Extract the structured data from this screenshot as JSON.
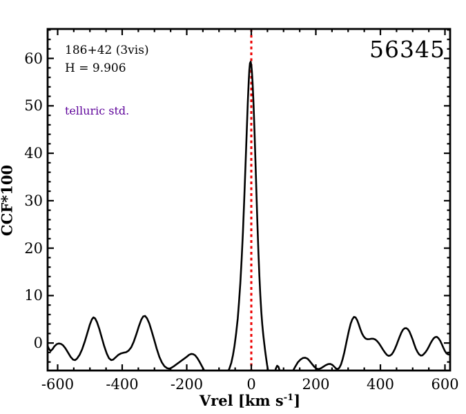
{
  "header": {
    "epoch_label": "56345"
  },
  "annotations": {
    "target_line": "186+42 (3vis)",
    "magnitude_line": "H = 9.906",
    "classification_note": "telluric std."
  },
  "colors": {
    "curve": "#000000",
    "frame": "#000000",
    "ref_line": "#ee0000",
    "note_text": "#5c0099"
  },
  "chart_data": {
    "type": "line",
    "title": "56345",
    "xlabel": "Vrel [km s-1]",
    "xlabel_parts": {
      "main": "Vrel [km s",
      "sup": "-1",
      "end": "]"
    },
    "ylabel": "CCF*100",
    "xlim": [
      -631,
      616
    ],
    "ylim": [
      -5.8,
      66.2
    ],
    "grid": false,
    "legend": "none",
    "x_major_ticks": [
      -600,
      -400,
      -200,
      0,
      200,
      400,
      600
    ],
    "x_tick_labels": [
      "-600",
      "-400",
      "-200",
      "0",
      "200",
      "400",
      "600"
    ],
    "x_minor_step": 50,
    "y_major_ticks": [
      0,
      10,
      20,
      30,
      40,
      50,
      60
    ],
    "y_tick_labels": [
      "0",
      "10",
      "20",
      "30",
      "40",
      "50",
      "60"
    ],
    "y_minor_step": 2,
    "ref_line": {
      "x": 0,
      "style": "dotted",
      "color": "#ee0000"
    },
    "series": [
      {
        "name": "CCF",
        "color": "#000000",
        "points": [
          [
            -633,
            -0.3
          ],
          [
            -628,
            -1.1
          ],
          [
            -622,
            -1.7
          ],
          [
            -616,
            -1.3
          ],
          [
            -610,
            -0.7
          ],
          [
            -603,
            -0.25
          ],
          [
            -596,
            -0.1
          ],
          [
            -589,
            -0.2
          ],
          [
            -583,
            -0.5
          ],
          [
            -576,
            -1.1
          ],
          [
            -568,
            -2.0
          ],
          [
            -560,
            -2.9
          ],
          [
            -552,
            -3.5
          ],
          [
            -546,
            -3.6
          ],
          [
            -540,
            -3.3
          ],
          [
            -532,
            -2.5
          ],
          [
            -524,
            -1.3
          ],
          [
            -516,
            0.3
          ],
          [
            -508,
            2.1
          ],
          [
            -500,
            3.9
          ],
          [
            -494,
            5.0
          ],
          [
            -489,
            5.4
          ],
          [
            -484,
            5.2
          ],
          [
            -478,
            4.4
          ],
          [
            -471,
            3.0
          ],
          [
            -464,
            1.3
          ],
          [
            -456,
            -0.6
          ],
          [
            -448,
            -2.2
          ],
          [
            -441,
            -3.2
          ],
          [
            -434,
            -3.6
          ],
          [
            -428,
            -3.5
          ],
          [
            -420,
            -3.0
          ],
          [
            -412,
            -2.5
          ],
          [
            -404,
            -2.2
          ],
          [
            -396,
            -2.05
          ],
          [
            -388,
            -1.95
          ],
          [
            -380,
            -1.6
          ],
          [
            -372,
            -0.9
          ],
          [
            -364,
            0.3
          ],
          [
            -356,
            1.9
          ],
          [
            -348,
            3.6
          ],
          [
            -341,
            4.9
          ],
          [
            -335,
            5.6
          ],
          [
            -329,
            5.7
          ],
          [
            -323,
            5.2
          ],
          [
            -316,
            4.1
          ],
          [
            -309,
            2.6
          ],
          [
            -301,
            0.7
          ],
          [
            -293,
            -1.2
          ],
          [
            -285,
            -2.9
          ],
          [
            -277,
            -4.1
          ],
          [
            -269,
            -4.9
          ],
          [
            -261,
            -5.3
          ],
          [
            -254,
            -5.4
          ],
          [
            -247,
            -5.2
          ],
          [
            -240,
            -4.9
          ],
          [
            -232,
            -4.5
          ],
          [
            -224,
            -4.1
          ],
          [
            -216,
            -3.7
          ],
          [
            -208,
            -3.3
          ],
          [
            -200,
            -2.9
          ],
          [
            -193,
            -2.5
          ],
          [
            -186,
            -2.3
          ],
          [
            -180,
            -2.35
          ],
          [
            -174,
            -2.6
          ],
          [
            -167,
            -3.2
          ],
          [
            -160,
            -4.0
          ],
          [
            -152,
            -5.0
          ],
          [
            -144,
            -6.0
          ],
          [
            -136,
            -6.8
          ],
          [
            -128,
            -7.4
          ],
          [
            -100,
            -7.8
          ],
          [
            -88,
            -7.4
          ],
          [
            -80,
            -6.8
          ],
          [
            -74,
            -6.2
          ],
          [
            -68,
            -5.4
          ],
          [
            -62,
            -4.2
          ],
          [
            -57,
            -2.6
          ],
          [
            -52,
            -0.6
          ],
          [
            -47,
            2.0
          ],
          [
            -42,
            5.2
          ],
          [
            -38,
            8.6
          ],
          [
            -34,
            12.6
          ],
          [
            -30,
            17.6
          ],
          [
            -26,
            23.4
          ],
          [
            -22,
            30.0
          ],
          [
            -18,
            37.4
          ],
          [
            -14,
            45.0
          ],
          [
            -11,
            50.6
          ],
          [
            -8,
            55.2
          ],
          [
            -6,
            57.6
          ],
          [
            -4,
            59.0
          ],
          [
            -2,
            59.3
          ],
          [
            0,
            58.6
          ],
          [
            2,
            57.2
          ],
          [
            4,
            54.8
          ],
          [
            7,
            50.2
          ],
          [
            10,
            44.4
          ],
          [
            13,
            38.0
          ],
          [
            16,
            31.4
          ],
          [
            19,
            25.0
          ],
          [
            22,
            19.2
          ],
          [
            25,
            14.2
          ],
          [
            28,
            10.0
          ],
          [
            31,
            6.6
          ],
          [
            34,
            3.9
          ],
          [
            37,
            1.8
          ],
          [
            40,
            0.0
          ],
          [
            43,
            -1.7
          ],
          [
            46,
            -3.2
          ],
          [
            49,
            -4.6
          ],
          [
            52,
            -5.8
          ],
          [
            56,
            -7.0
          ],
          [
            62,
            -8.0
          ],
          [
            68,
            -7.6
          ],
          [
            72,
            -6.4
          ],
          [
            76,
            -5.4
          ],
          [
            80,
            -4.8
          ],
          [
            84,
            -5.0
          ],
          [
            88,
            -5.8
          ],
          [
            92,
            -6.8
          ],
          [
            100,
            -8.0
          ],
          [
            112,
            -7.8
          ],
          [
            120,
            -6.9
          ],
          [
            128,
            -6.0
          ],
          [
            136,
            -5.0
          ],
          [
            144,
            -4.1
          ],
          [
            152,
            -3.5
          ],
          [
            160,
            -3.15
          ],
          [
            167,
            -3.1
          ],
          [
            174,
            -3.3
          ],
          [
            181,
            -3.8
          ],
          [
            188,
            -4.4
          ],
          [
            195,
            -5.0
          ],
          [
            202,
            -5.4
          ],
          [
            209,
            -5.5
          ],
          [
            216,
            -5.3
          ],
          [
            223,
            -5.0
          ],
          [
            230,
            -4.7
          ],
          [
            238,
            -4.45
          ],
          [
            245,
            -4.4
          ],
          [
            251,
            -4.6
          ],
          [
            257,
            -5.0
          ],
          [
            263,
            -5.4
          ],
          [
            268,
            -5.5
          ],
          [
            273,
            -5.2
          ],
          [
            278,
            -4.5
          ],
          [
            283,
            -3.4
          ],
          [
            288,
            -2.0
          ],
          [
            293,
            -0.4
          ],
          [
            298,
            1.2
          ],
          [
            303,
            2.8
          ],
          [
            308,
            4.1
          ],
          [
            313,
            5.0
          ],
          [
            318,
            5.5
          ],
          [
            323,
            5.4
          ],
          [
            328,
            4.8
          ],
          [
            333,
            3.9
          ],
          [
            338,
            2.9
          ],
          [
            343,
            2.0
          ],
          [
            348,
            1.4
          ],
          [
            354,
            0.95
          ],
          [
            360,
            0.8
          ],
          [
            366,
            0.82
          ],
          [
            372,
            0.9
          ],
          [
            378,
            0.9
          ],
          [
            384,
            0.75
          ],
          [
            390,
            0.4
          ],
          [
            396,
            -0.1
          ],
          [
            402,
            -0.75
          ],
          [
            408,
            -1.4
          ],
          [
            414,
            -2.0
          ],
          [
            420,
            -2.5
          ],
          [
            425,
            -2.7
          ],
          [
            430,
            -2.65
          ],
          [
            435,
            -2.4
          ],
          [
            440,
            -1.9
          ],
          [
            445,
            -1.2
          ],
          [
            450,
            -0.4
          ],
          [
            455,
            0.5
          ],
          [
            460,
            1.4
          ],
          [
            465,
            2.2
          ],
          [
            470,
            2.8
          ],
          [
            475,
            3.1
          ],
          [
            480,
            3.15
          ],
          [
            485,
            2.9
          ],
          [
            490,
            2.4
          ],
          [
            495,
            1.6
          ],
          [
            500,
            0.7
          ],
          [
            505,
            -0.3
          ],
          [
            510,
            -1.2
          ],
          [
            515,
            -1.9
          ],
          [
            520,
            -2.4
          ],
          [
            525,
            -2.65
          ],
          [
            530,
            -2.6
          ],
          [
            535,
            -2.3
          ],
          [
            540,
            -1.9
          ],
          [
            545,
            -1.4
          ],
          [
            550,
            -0.8
          ],
          [
            555,
            -0.1
          ],
          [
            560,
            0.5
          ],
          [
            565,
            1.0
          ],
          [
            570,
            1.25
          ],
          [
            575,
            1.3
          ],
          [
            580,
            1.0
          ],
          [
            585,
            0.5
          ],
          [
            590,
            -0.2
          ],
          [
            595,
            -1.0
          ],
          [
            600,
            -1.7
          ],
          [
            605,
            -2.2
          ],
          [
            610,
            -2.4
          ],
          [
            614,
            -2.45
          ],
          [
            618,
            -2.4
          ]
        ]
      }
    ]
  }
}
